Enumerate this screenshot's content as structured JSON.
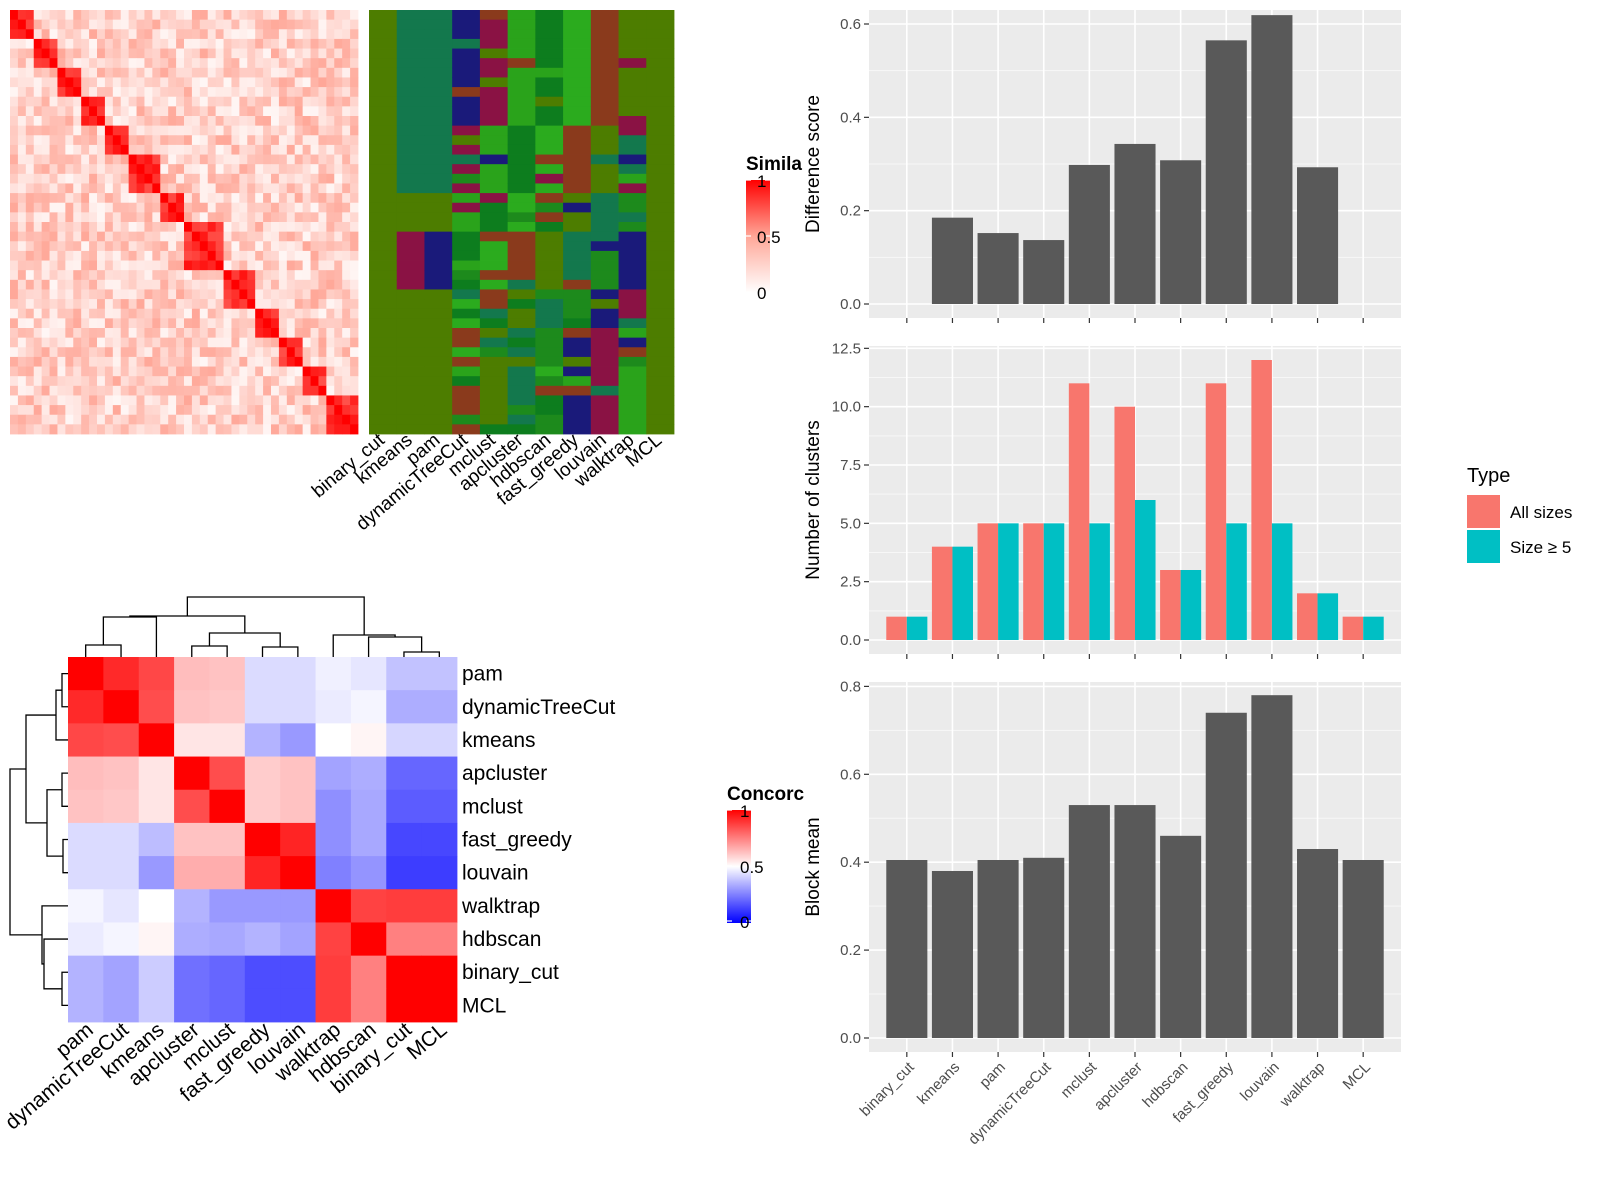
{
  "similarity_heatmap": {
    "legend_title": "Simila",
    "legend_ticks": [
      "1",
      "0.5",
      "0"
    ],
    "method_labels": [
      "binary_cut",
      "kmeans",
      "pam",
      "dynamicTreeCut",
      "mclust",
      "apcluster",
      "hdbscan",
      "fast_greedy",
      "louvain",
      "walktrap",
      "MCL"
    ],
    "colors": {
      "high": "#ff0000",
      "mid": "#ffa798",
      "low": "#ffffff"
    },
    "classes_palette": [
      "#4d7d00",
      "#13784d",
      "#1d8a1c",
      "#1a1a7a",
      "#8a1244",
      "#2aa31b",
      "#0d7d1e",
      "#2bab1e",
      "#8a3a1c"
    ]
  },
  "concordance_heatmap": {
    "legend_title": "Concorc",
    "legend_ticks": [
      "1",
      "0.5",
      "0"
    ],
    "colors": {
      "high": "#ff0000",
      "mid": "#ffffff",
      "low": "#0000ff"
    },
    "methods": [
      "pam",
      "dynamicTreeCut",
      "kmeans",
      "apcluster",
      "mclust",
      "fast_greedy",
      "louvain",
      "walktrap",
      "hdbscan",
      "binary_cut",
      "MCL"
    ],
    "matrix": [
      [
        1.0,
        0.92,
        0.86,
        0.63,
        0.62,
        0.43,
        0.43,
        0.47,
        0.45,
        0.38,
        0.38
      ],
      [
        0.92,
        1.0,
        0.85,
        0.62,
        0.61,
        0.43,
        0.43,
        0.46,
        0.48,
        0.34,
        0.34
      ],
      [
        0.86,
        0.85,
        1.0,
        0.55,
        0.55,
        0.35,
        0.3,
        0.5,
        0.52,
        0.42,
        0.42
      ],
      [
        0.63,
        0.62,
        0.55,
        1.0,
        0.85,
        0.6,
        0.62,
        0.32,
        0.34,
        0.2,
        0.2
      ],
      [
        0.62,
        0.61,
        0.55,
        0.85,
        1.0,
        0.6,
        0.62,
        0.28,
        0.33,
        0.18,
        0.18
      ],
      [
        0.43,
        0.43,
        0.37,
        0.62,
        0.62,
        1.0,
        0.93,
        0.28,
        0.33,
        0.14,
        0.14
      ],
      [
        0.43,
        0.43,
        0.3,
        0.66,
        0.66,
        0.93,
        1.0,
        0.25,
        0.29,
        0.12,
        0.12
      ],
      [
        0.48,
        0.45,
        0.5,
        0.35,
        0.3,
        0.3,
        0.3,
        1.0,
        0.87,
        0.88,
        0.88
      ],
      [
        0.46,
        0.48,
        0.52,
        0.34,
        0.33,
        0.35,
        0.32,
        0.87,
        1.0,
        0.75,
        0.75
      ],
      [
        0.35,
        0.32,
        0.4,
        0.22,
        0.2,
        0.15,
        0.15,
        0.88,
        0.75,
        1.0,
        1.0
      ],
      [
        0.35,
        0.32,
        0.4,
        0.22,
        0.2,
        0.15,
        0.15,
        0.88,
        0.75,
        1.0,
        1.0
      ]
    ]
  },
  "chart_data": [
    {
      "type": "bar",
      "ylabel": "Difference score",
      "ylim": [
        0,
        0.63
      ],
      "yticks": [
        "0.0",
        "0.2",
        "0.4",
        "0.6"
      ],
      "categories": [
        "binary_cut",
        "kmeans",
        "pam",
        "dynamicTreeCut",
        "mclust",
        "apcluster",
        "hdbscan",
        "fast_greedy",
        "louvain",
        "walktrap",
        "MCL"
      ],
      "values": [
        0,
        0.185,
        0.152,
        0.137,
        0.298,
        0.343,
        0.308,
        0.565,
        0.619,
        0.293,
        0
      ],
      "color": "#595959"
    },
    {
      "type": "bar",
      "ylabel": "Number of clusters",
      "ylim": [
        0,
        12.6
      ],
      "yticks": [
        "0.0",
        "2.5",
        "5.0",
        "7.5",
        "10.0",
        "12.5"
      ],
      "categories": [
        "binary_cut",
        "kmeans",
        "pam",
        "dynamicTreeCut",
        "mclust",
        "apcluster",
        "hdbscan",
        "fast_greedy",
        "louvain",
        "walktrap",
        "MCL"
      ],
      "series": [
        {
          "name": "All sizes",
          "color": "#f8766d",
          "values": [
            1,
            4,
            5,
            5,
            11,
            10,
            3,
            11,
            12,
            2,
            1
          ]
        },
        {
          "name": "Size ≥ 5",
          "color": "#00bfc4",
          "values": [
            1,
            4,
            5,
            5,
            5,
            6,
            3,
            5,
            5,
            2,
            1
          ]
        }
      ],
      "legend_title": "Type",
      "legend_position": "right"
    },
    {
      "type": "bar",
      "ylabel": "Block mean",
      "ylim": [
        0,
        0.81
      ],
      "yticks": [
        "0.0",
        "0.2",
        "0.4",
        "0.6",
        "0.8"
      ],
      "categories": [
        "binary_cut",
        "kmeans",
        "pam",
        "dynamicTreeCut",
        "mclust",
        "apcluster",
        "hdbscan",
        "fast_greedy",
        "louvain",
        "walktrap",
        "MCL"
      ],
      "values": [
        0.405,
        0.38,
        0.405,
        0.41,
        0.53,
        0.53,
        0.46,
        0.74,
        0.78,
        0.43,
        0.405
      ],
      "color": "#595959"
    }
  ]
}
